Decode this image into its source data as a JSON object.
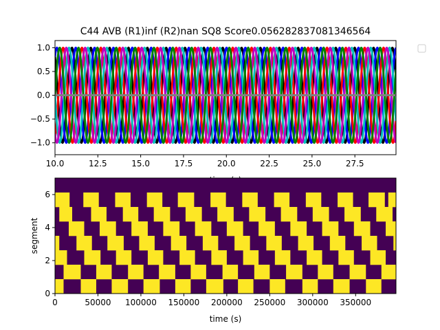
{
  "chart_data": [
    {
      "type": "line",
      "title": "C44 AVB (R1)inf (R2)nan SQ8 Score0.056282837081346564",
      "xlabel": "time (s)",
      "ylabel": "",
      "xlim": [
        10.0,
        29.9
      ],
      "ylim": [
        -1.25,
        1.15
      ],
      "xticks": [
        10.0,
        12.5,
        15.0,
        17.5,
        20.0,
        22.5,
        25.0,
        27.5
      ],
      "xtick_labels": [
        "10.0",
        "12.5",
        "15.0",
        "17.5",
        "20.0",
        "22.5",
        "25.0",
        "27.5"
      ],
      "yticks": [
        -1.0,
        -0.5,
        0.0,
        0.5,
        1.0
      ],
      "ytick_labels": [
        "−1.0",
        "−0.5",
        "0.0",
        "0.5",
        "1.0"
      ],
      "grid": false,
      "legend": "outside-upper-right-empty",
      "series": [
        {
          "color": "#000000",
          "period": 1.1,
          "phase_at_x0": 0.35,
          "amplitude": 1.0,
          "x_start": 10.0,
          "x_end": 29.9
        },
        {
          "color": "#0000ff",
          "period": 1.1,
          "phase_at_x0": 0.15,
          "amplitude": 1.0,
          "x_start": 10.0,
          "x_end": 29.9
        },
        {
          "color": "#ff0000",
          "period": 1.1,
          "phase_at_x0": 0.82,
          "amplitude": 1.0,
          "x_start": 10.0,
          "x_end": 29.9
        },
        {
          "color": "#00bfbf",
          "period": 1.1,
          "phase_at_x0": 0.5,
          "amplitude": 1.0,
          "x_start": 10.0,
          "x_end": 29.9
        },
        {
          "color": "#bf00bf",
          "period": 1.1,
          "phase_at_x0": 0.65,
          "amplitude": 1.0,
          "x_start": 10.0,
          "x_end": 29.9
        },
        {
          "color": "#008000",
          "period": 1.1,
          "phase_at_x0": 0.0,
          "amplitude": 1.0,
          "x_start": 10.0,
          "x_end": 29.9
        },
        {
          "color": "#808080",
          "period": 1.1,
          "phase_at_x0": 0.0,
          "amplitude": 0.0,
          "x_start": 10.0,
          "x_end": 29.9
        }
      ]
    },
    {
      "type": "heatmap",
      "title": "",
      "xlabel": "time (s)",
      "ylabel": "segment",
      "xlim": [
        0,
        397000
      ],
      "ylim": [
        0,
        7
      ],
      "xticks": [
        0,
        50000,
        100000,
        150000,
        200000,
        250000,
        300000,
        350000
      ],
      "xtick_labels": [
        "0",
        "50000",
        "100000",
        "150000",
        "200000",
        "250000",
        "300000",
        "350000"
      ],
      "yticks": [
        0,
        2,
        4,
        6
      ],
      "ytick_labels": [
        "0",
        "2",
        "4",
        "6"
      ],
      "colors": {
        "low": "#440154",
        "high": "#fde725"
      },
      "rows": [
        {
          "segment": 0,
          "high_intervals": [
            [
              0,
              10000
            ],
            [
              30000,
              48000
            ],
            [
              66000,
              85000
            ],
            [
              103000,
              122000
            ],
            [
              140000,
              158000
            ],
            [
              176000,
              196000
            ],
            [
              213000,
              231000
            ],
            [
              250000,
              268000
            ],
            [
              288000,
              306000
            ],
            [
              324000,
              343000
            ],
            [
              362000,
              380000
            ]
          ]
        },
        {
          "segment": 1,
          "high_intervals": [
            [
              10000,
              30000
            ],
            [
              48000,
              66000
            ],
            [
              85000,
              103000
            ],
            [
              121000,
              140000
            ],
            [
              158000,
              176000
            ],
            [
              195000,
              213000
            ],
            [
              232000,
              250000
            ],
            [
              269000,
              288000
            ],
            [
              306000,
              324000
            ],
            [
              343000,
              362000
            ],
            [
              380000,
              397000
            ]
          ]
        },
        {
          "segment": 2,
          "high_intervals": [
            [
              0,
              14000
            ],
            [
              34000,
              53000
            ],
            [
              71000,
              89000
            ],
            [
              108000,
              126000
            ],
            [
              145000,
              163000
            ],
            [
              182000,
              200000
            ],
            [
              219000,
              237000
            ],
            [
              256000,
              274000
            ],
            [
              293000,
              311000
            ],
            [
              330000,
              348000
            ],
            [
              367000,
              385000
            ]
          ]
        },
        {
          "segment": 3,
          "high_intervals": [
            [
              0,
              5000
            ],
            [
              25000,
              43000
            ],
            [
              61000,
              80000
            ],
            [
              98000,
              116000
            ],
            [
              135000,
              153000
            ],
            [
              172000,
              190000
            ],
            [
              209000,
              227000
            ],
            [
              246000,
              264000
            ],
            [
              283000,
              301000
            ],
            [
              320000,
              338000
            ],
            [
              357000,
              375000
            ],
            [
              394000,
              397000
            ]
          ]
        },
        {
          "segment": 4,
          "high_intervals": [
            [
              16000,
              34000
            ],
            [
              52000,
              71000
            ],
            [
              89000,
              108000
            ],
            [
              126000,
              145000
            ],
            [
              163000,
              182000
            ],
            [
              200000,
              219000
            ],
            [
              237000,
              256000
            ],
            [
              274000,
              293000
            ],
            [
              311000,
              330000
            ],
            [
              348000,
              367000
            ],
            [
              385000,
              397000
            ]
          ]
        },
        {
          "segment": 5,
          "high_intervals": [
            [
              5000,
              20000
            ],
            [
              42000,
              60000
            ],
            [
              79000,
              97000
            ],
            [
              115000,
              134000
            ],
            [
              152000,
              171000
            ],
            [
              189000,
              208000
            ],
            [
              226000,
              245000
            ],
            [
              263000,
              282000
            ],
            [
              300000,
              319000
            ],
            [
              337000,
              356000
            ],
            [
              374000,
              393000
            ]
          ]
        },
        {
          "segment": 6,
          "high_intervals": [
            [
              0,
              17000
            ],
            [
              33000,
              51000
            ],
            [
              70000,
              88000
            ],
            [
              107000,
              125000
            ],
            [
              143000,
              162000
            ],
            [
              181000,
              199000
            ],
            [
              218000,
              236000
            ],
            [
              255000,
              273000
            ],
            [
              292000,
              310000
            ],
            [
              329000,
              347000
            ],
            [
              365000,
              384000
            ],
            [
              388000,
              397000
            ]
          ]
        },
        {
          "segment": 6.5,
          "high_intervals": []
        }
      ]
    }
  ]
}
